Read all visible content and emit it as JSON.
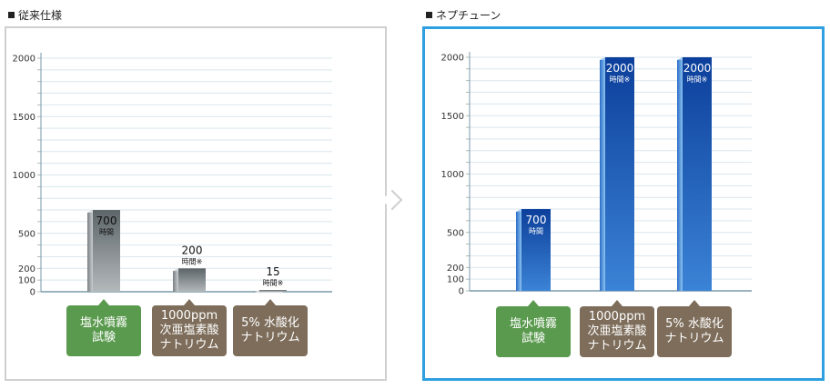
{
  "left_panel": {
    "title": "従来仕様"
  },
  "right_panel": {
    "title": "ネプチューン"
  },
  "unit_label": "時間",
  "note_mark": "※",
  "categories": [
    {
      "label": "塩水噴霧\n試験",
      "color": "#5a9a4e"
    },
    {
      "label": "1000ppm\n次亜塩素酸\nナトリウム",
      "color": "#7d6d5a"
    },
    {
      "label": "5% 水酸化\nナトリウム",
      "color": "#7d6d5a"
    }
  ],
  "chart_data": [
    {
      "type": "bar",
      "title": "従来仕様",
      "categories": [
        "塩水噴霧試験",
        "1000ppm次亜塩素酸ナトリウム",
        "5% 水酸化ナトリウム"
      ],
      "values": [
        700,
        200,
        15
      ],
      "value_labels": [
        "700",
        "200",
        "15"
      ],
      "value_notes": [
        false,
        true,
        true
      ],
      "yticks": [
        0,
        100,
        200,
        500,
        1000,
        1500,
        2000
      ],
      "ylim": [
        0,
        2000
      ],
      "grid": true,
      "bar_color": "#8a9196"
    },
    {
      "type": "bar",
      "title": "ネプチューン",
      "categories": [
        "塩水噴霧試験",
        "1000ppm次亜塩素酸ナトリウム",
        "5% 水酸化ナトリウム"
      ],
      "values": [
        700,
        2000,
        2000
      ],
      "value_labels": [
        "700",
        "2000",
        "2000"
      ],
      "value_notes": [
        false,
        true,
        true
      ],
      "yticks": [
        0,
        100,
        200,
        500,
        1000,
        1500,
        2000
      ],
      "ylim": [
        0,
        2000
      ],
      "grid": true,
      "bar_color": "#1e56b8"
    }
  ]
}
